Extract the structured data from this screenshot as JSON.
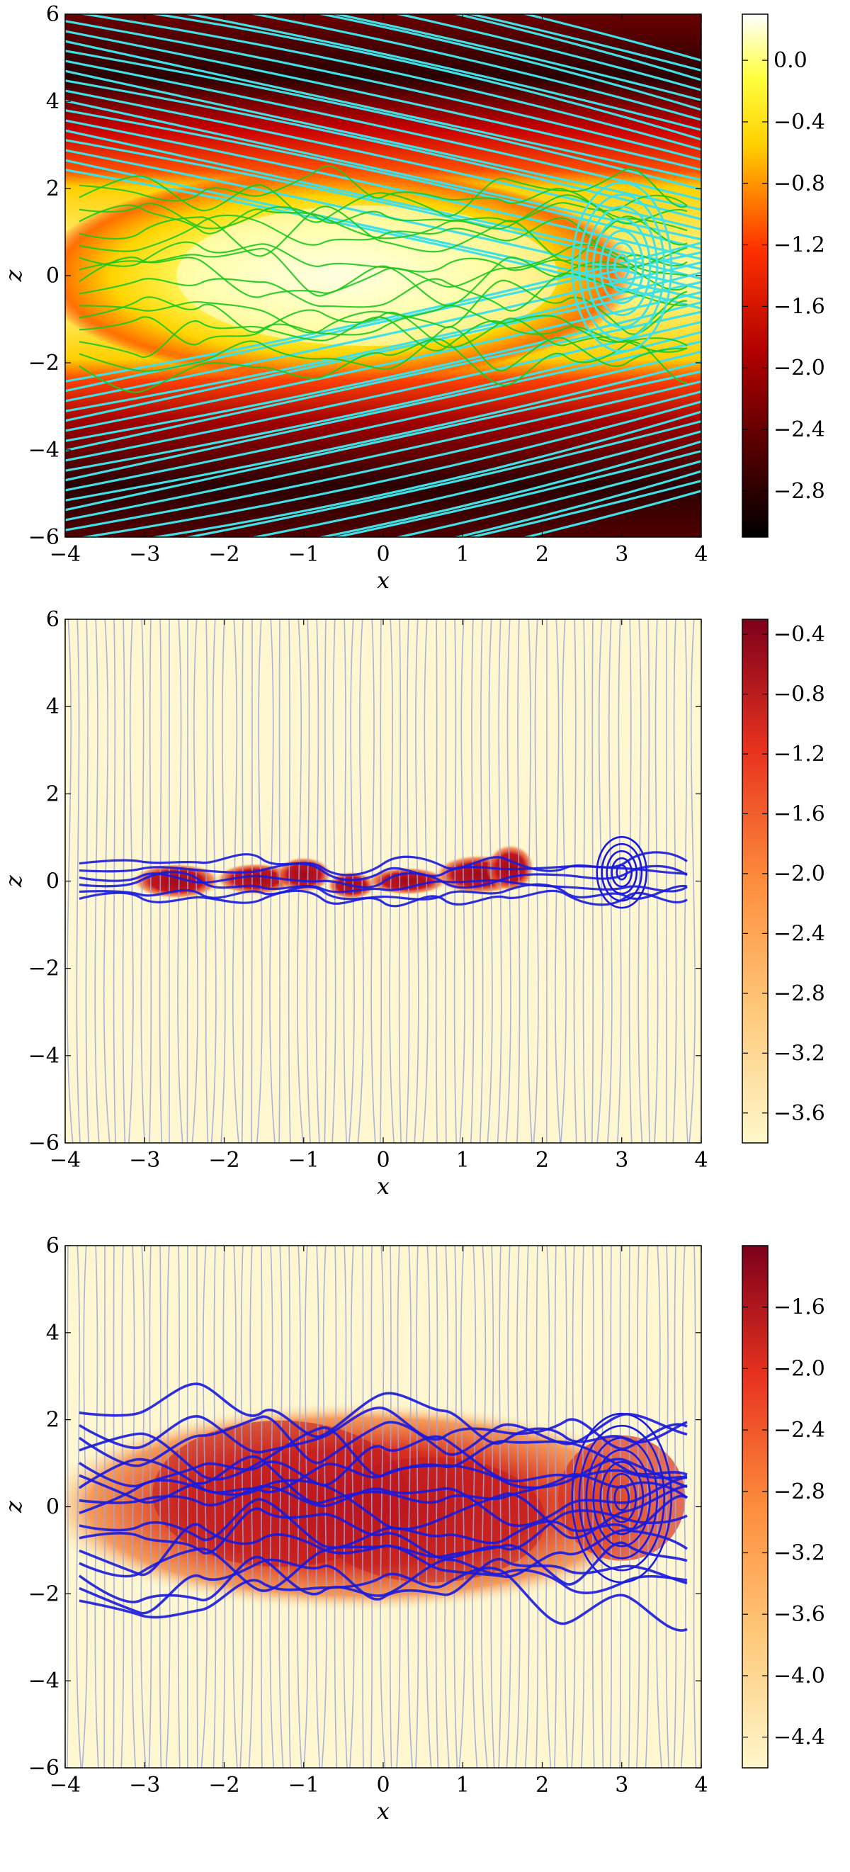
{
  "chart_data": [
    {
      "type": "heatmap",
      "title": "",
      "xlabel": "x",
      "ylabel": "z",
      "xlim": [
        -4,
        4
      ],
      "ylim": [
        -6,
        6
      ],
      "xticks": [
        -4,
        -3,
        -2,
        -1,
        0,
        1,
        2,
        3,
        4
      ],
      "yticks": [
        -6,
        -4,
        -2,
        0,
        2,
        4,
        6
      ],
      "xtick_labels": [
        "−4",
        "−3",
        "−2",
        "−1",
        "0",
        "1",
        "2",
        "3",
        "4"
      ],
      "ytick_labels": [
        "−6",
        "−4",
        "−2",
        "0",
        "2",
        "4",
        "6"
      ],
      "colormap": "hot",
      "colorbar": {
        "range": [
          -3.1,
          0.3
        ],
        "ticks": [
          0.0,
          -0.4,
          -0.8,
          -1.2,
          -1.6,
          -2.0,
          -2.4,
          -2.8
        ],
        "tick_labels": [
          "0.0",
          "−0.4",
          "−0.8",
          "−1.2",
          "−1.6",
          "−2.0",
          "−2.4",
          "−2.8"
        ]
      },
      "overlay": {
        "type": "streamlines",
        "colors": [
          "#3fe0e6",
          "#1fc81f"
        ]
      },
      "features": {
        "band_center_z": 0,
        "band_halfwidth_z": 2.3,
        "vortex": [
          3.0,
          0.2
        ]
      },
      "grid": false
    },
    {
      "type": "heatmap",
      "title": "",
      "xlabel": "x",
      "ylabel": "z",
      "xlim": [
        -4,
        4
      ],
      "ylim": [
        -6,
        6
      ],
      "xticks": [
        -4,
        -3,
        -2,
        -1,
        0,
        1,
        2,
        3,
        4
      ],
      "yticks": [
        -6,
        -4,
        -2,
        0,
        2,
        4,
        6
      ],
      "xtick_labels": [
        "−4",
        "−3",
        "−2",
        "−1",
        "0",
        "1",
        "2",
        "3",
        "4"
      ],
      "ytick_labels": [
        "−6",
        "−4",
        "−2",
        "0",
        "2",
        "4",
        "6"
      ],
      "colormap": "YlOrRd",
      "colorbar": {
        "range": [
          -3.8,
          -0.3
        ],
        "ticks": [
          -0.4,
          -0.8,
          -1.2,
          -1.6,
          -2.0,
          -2.4,
          -2.8,
          -3.2,
          -3.6
        ],
        "tick_labels": [
          "−0.4",
          "−0.8",
          "−1.2",
          "−1.6",
          "−2.0",
          "−2.4",
          "−2.8",
          "−3.2",
          "−3.6"
        ]
      },
      "overlay": {
        "type": "streamlines",
        "colors": [
          "#1a1adc",
          "#9aa6e0"
        ]
      },
      "features": {
        "band_center_z": 0,
        "band_halfwidth_z": 0.45,
        "vortex": [
          3.0,
          0.2
        ]
      },
      "grid": false
    },
    {
      "type": "heatmap",
      "title": "",
      "xlabel": "x",
      "ylabel": "z",
      "xlim": [
        -4,
        4
      ],
      "ylim": [
        -6,
        6
      ],
      "xticks": [
        -4,
        -3,
        -2,
        -1,
        0,
        1,
        2,
        3,
        4
      ],
      "yticks": [
        -6,
        -4,
        -2,
        0,
        2,
        4,
        6
      ],
      "xtick_labels": [
        "−4",
        "−3",
        "−2",
        "−1",
        "0",
        "1",
        "2",
        "3",
        "4"
      ],
      "ytick_labels": [
        "−6",
        "−4",
        "−2",
        "0",
        "2",
        "4",
        "6"
      ],
      "colormap": "YlOrRd",
      "colorbar": {
        "range": [
          -4.6,
          -1.2
        ],
        "ticks": [
          -1.6,
          -2.0,
          -2.4,
          -2.8,
          -3.2,
          -3.6,
          -4.0,
          -4.4
        ],
        "tick_labels": [
          "−1.6",
          "−2.0",
          "−2.4",
          "−2.8",
          "−3.2",
          "−3.6",
          "−4.0",
          "−4.4"
        ]
      },
      "overlay": {
        "type": "streamlines",
        "colors": [
          "#1a1adc",
          "#9aa6e0"
        ]
      },
      "features": {
        "band_center_z": 0,
        "band_halfwidth_z": 2.4,
        "vortex": [
          3.0,
          0.2
        ]
      },
      "grid": false
    }
  ]
}
